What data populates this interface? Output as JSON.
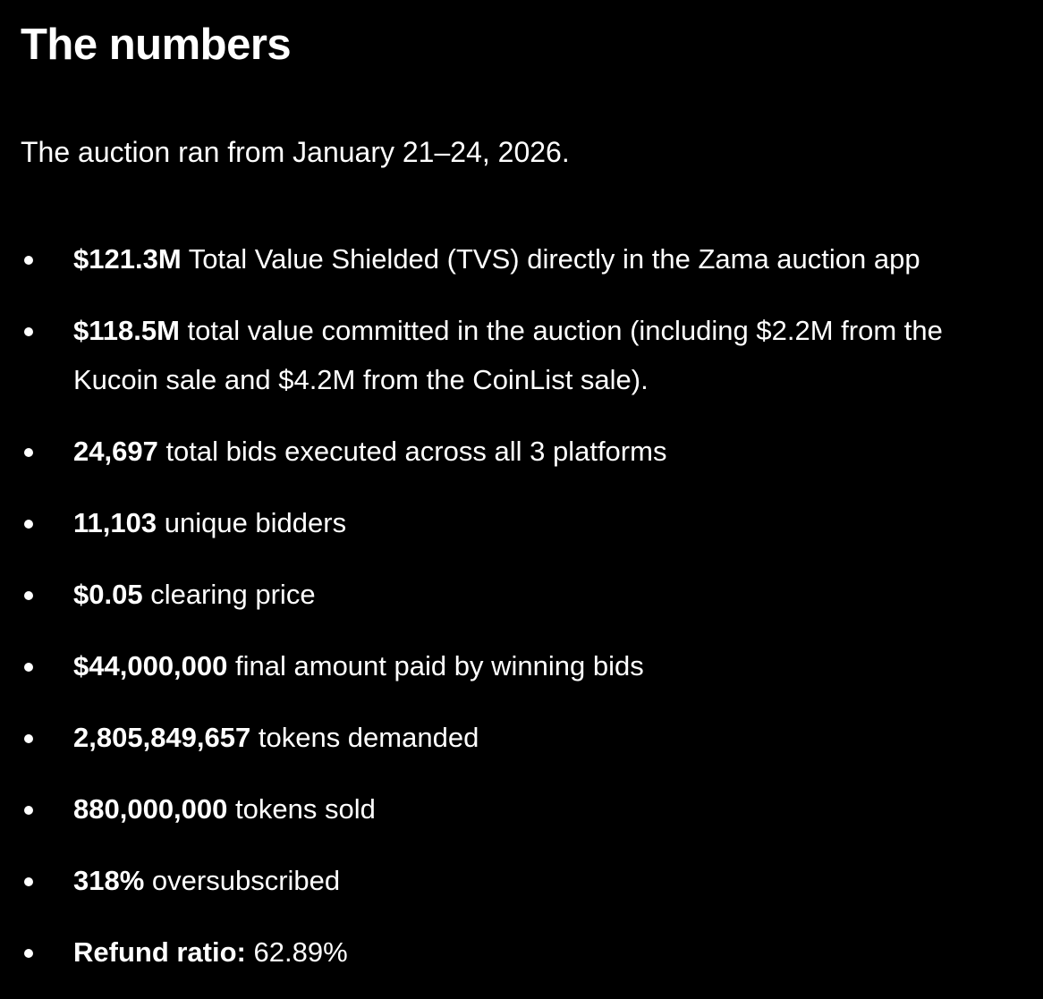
{
  "heading": "The numbers",
  "intro": "The auction ran from January 21–24, 2026.",
  "items": [
    {
      "bold": "$121.3M",
      "text": " Total Value Shielded (TVS) directly in the Zama auction app"
    },
    {
      "bold": "$118.5M",
      "text": " total value committed in the auction (including $2.2M from the Kucoin sale and $4.2M from the CoinList sale)."
    },
    {
      "bold": "24,697",
      "text": " total bids executed across all 3 platforms"
    },
    {
      "bold": "11,103",
      "text": " unique bidders"
    },
    {
      "bold": "$0.05",
      "text": " clearing price"
    },
    {
      "bold": "$44,000,000",
      "text": " final amount paid by winning bids"
    },
    {
      "bold": "2,805,849,657",
      "text": " tokens demanded"
    },
    {
      "bold": "880,000,000",
      "text": " tokens sold"
    },
    {
      "bold": "318%",
      "text": " oversubscribed"
    },
    {
      "bold": "Refund ratio:",
      "text": " 62.89%"
    }
  ]
}
